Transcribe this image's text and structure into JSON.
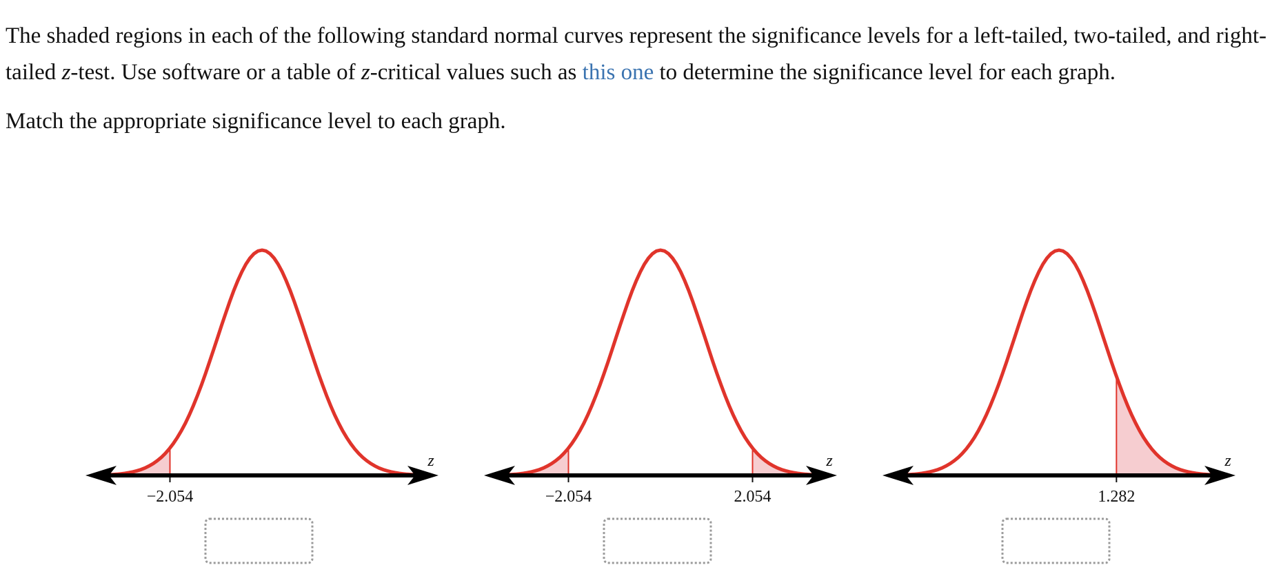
{
  "instructions": {
    "parts": [
      "The shaded regions in each of the following standard normal curves represent the significance levels for a left-tailed, two-tailed, and right-tailed ",
      "z",
      "-test. Use software or a table of ",
      "z",
      "-critical values such as ",
      "this one",
      " to determine the significance level for each graph."
    ]
  },
  "prompt": "Match the appropriate significance level to each graph.",
  "graphs": [
    {
      "shaded": "left",
      "axis_label": "z",
      "critical_values": [
        {
          "value": -2.054,
          "label": "−2.054"
        }
      ]
    },
    {
      "shaded": "two",
      "axis_label": "z",
      "critical_values": [
        {
          "value": -2.054,
          "label": "−2.054"
        },
        {
          "value": 2.054,
          "label": "2.054"
        }
      ]
    },
    {
      "shaded": "right",
      "axis_label": "z",
      "critical_values": [
        {
          "value": 1.282,
          "label": "1.282"
        }
      ]
    }
  ]
}
